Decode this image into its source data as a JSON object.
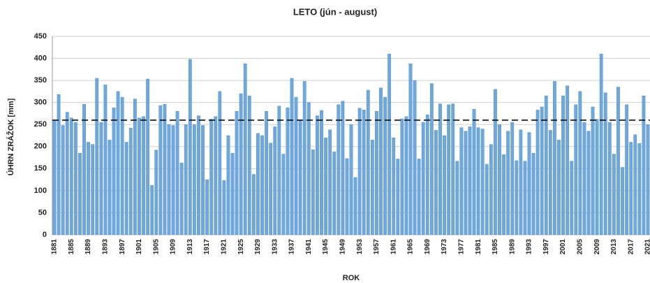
{
  "chart_data": {
    "type": "bar",
    "title": "LETO (jún - august)",
    "x_label": "ROK",
    "y_label": "ÚHRN ZRÁŽOK [mm]",
    "categories": [
      "1881",
      null,
      null,
      null,
      "1885",
      null,
      null,
      null,
      "1889",
      null,
      null,
      null,
      "1893",
      null,
      null,
      null,
      "1897",
      null,
      null,
      null,
      "1901",
      null,
      null,
      null,
      "1905",
      null,
      null,
      null,
      "1909",
      null,
      null,
      null,
      "1913",
      null,
      null,
      null,
      "1917",
      null,
      null,
      null,
      "1921",
      null,
      null,
      null,
      "1925",
      null,
      null,
      null,
      "1929",
      null,
      null,
      null,
      "1933",
      null,
      null,
      null,
      "1937",
      null,
      null,
      null,
      "1941",
      null,
      null,
      null,
      "1945",
      null,
      null,
      null,
      "1949",
      null,
      null,
      null,
      "1953",
      null,
      null,
      null,
      "1957",
      null,
      null,
      null,
      "1961",
      null,
      null,
      null,
      "1965",
      null,
      null,
      null,
      "1969",
      null,
      null,
      null,
      "1973",
      null,
      null,
      null,
      "1977",
      null,
      null,
      null,
      "1981",
      null,
      null,
      null,
      "1985",
      null,
      null,
      null,
      "1989",
      null,
      null,
      null,
      "1993",
      null,
      null,
      null,
      "1997",
      null,
      null,
      null,
      "2001",
      null,
      null,
      null,
      "2005",
      null,
      null,
      null,
      "2009",
      null,
      null,
      null,
      "2013",
      null,
      null,
      null,
      "2017",
      null,
      null,
      null,
      "2021"
    ],
    "values": [
      260,
      318,
      248,
      278,
      265,
      255,
      185,
      296,
      210,
      205,
      355,
      255,
      340,
      215,
      288,
      325,
      312,
      210,
      242,
      308,
      265,
      268,
      353,
      112,
      192,
      293,
      296,
      250,
      248,
      280,
      163,
      250,
      398,
      250,
      270,
      248,
      125,
      262,
      268,
      325,
      123,
      225,
      185,
      280,
      320,
      388,
      315,
      137,
      230,
      225,
      280,
      208,
      245,
      292,
      183,
      288,
      355,
      312,
      260,
      348,
      300,
      193,
      270,
      282,
      220,
      238,
      188,
      295,
      303,
      173,
      250,
      130,
      287,
      283,
      328,
      215,
      280,
      333,
      312,
      410,
      220,
      172,
      263,
      268,
      388,
      350,
      172,
      255,
      272,
      343,
      237,
      297,
      225,
      295,
      297,
      167,
      243,
      235,
      245,
      285,
      243,
      240,
      160,
      205,
      330,
      250,
      182,
      235,
      255,
      168,
      238,
      167,
      232,
      185,
      283,
      290,
      315,
      237,
      348,
      215,
      315,
      338,
      167,
      295,
      325,
      255,
      235,
      290,
      262,
      410,
      322,
      255,
      183,
      335,
      153,
      295,
      210,
      227,
      207,
      315,
      250
    ],
    "color": "#6fa8dc",
    "reference_line": 260,
    "ylim": [
      0,
      450
    ],
    "yticks": [
      0,
      50,
      100,
      150,
      200,
      250,
      300,
      350,
      400,
      450
    ],
    "grid": true
  }
}
